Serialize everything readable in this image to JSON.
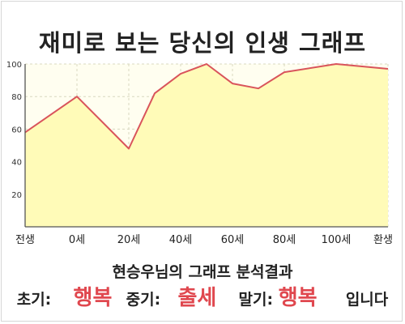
{
  "title": "재미로 보는 당신의 인생 그래프",
  "chart_data": {
    "type": "area",
    "title": "재미로 보는 당신의 인생 그래프",
    "x_tick_labels": [
      "전생",
      "0세",
      "20세",
      "40세",
      "60세",
      "80세",
      "100세",
      "환생"
    ],
    "y_ticks": [
      20,
      40,
      60,
      80,
      100
    ],
    "ylim": [
      0,
      100
    ],
    "xlim": [
      -20,
      120
    ],
    "grid": true,
    "colors": {
      "fill": "#fffbb8",
      "line": "#d9545b",
      "grid": "#d8d8c0",
      "plot_bg": "#fffef0"
    },
    "x": [
      -20,
      0,
      20,
      30,
      40,
      50,
      60,
      70,
      80,
      100,
      120
    ],
    "values": [
      58,
      80,
      48,
      82,
      94,
      100,
      88,
      85,
      95,
      100,
      97
    ]
  },
  "result": {
    "heading": "현승우님의 그래프 분석결과",
    "early_label": "초기:",
    "early_value": "행복",
    "mid_label": "중기:",
    "mid_value": "출세",
    "late_label": "말기:",
    "late_value": "행복",
    "suffix": "입니다"
  }
}
